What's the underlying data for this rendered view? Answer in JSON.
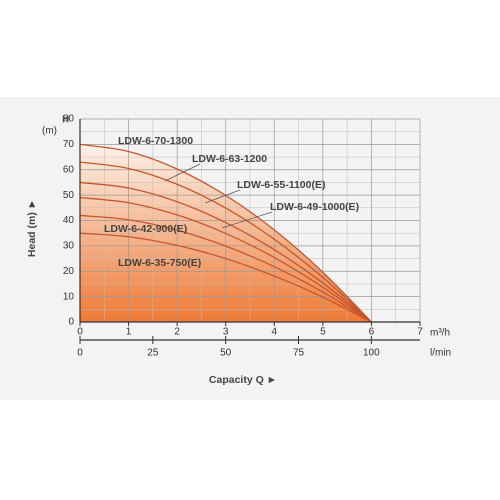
{
  "chart_data": {
    "type": "line",
    "ylabel_top": "H",
    "ylabel_unit": "(m)",
    "ylabel": "Head (m) ►",
    "xlabel": "Capacity Q ►",
    "xunit": "m³/h",
    "x2unit": "l/min",
    "x": [
      0,
      1,
      2,
      3,
      4,
      5,
      6
    ],
    "series": [
      {
        "name": "LDW-6-70-1300",
        "color": "#c8552a",
        "values": [
          70,
          67.2,
          60.3,
          49.9,
          36.3,
          19.6,
          0
        ]
      },
      {
        "name": "LDW-6-63-1200",
        "color": "#c8552a",
        "values": [
          63,
          60.5,
          54.3,
          44.9,
          32.6,
          17.6,
          0
        ]
      },
      {
        "name": "LDW-6-55-1100(E)",
        "color": "#c8552a",
        "values": [
          55,
          52.8,
          47.4,
          39.2,
          28.5,
          15.4,
          0
        ]
      },
      {
        "name": "LDW-6-49-1000(E)",
        "color": "#c8552a",
        "values": [
          49,
          47.0,
          42.2,
          34.9,
          25.4,
          13.7,
          0
        ]
      },
      {
        "name": "LDW-6-42-900(E)",
        "color": "#c8552a",
        "values": [
          42,
          40.3,
          36.2,
          29.9,
          21.8,
          11.8,
          0
        ]
      },
      {
        "name": "LDW-6-35-750(E)",
        "color": "#c8552a",
        "values": [
          35,
          33.6,
          30.2,
          25.0,
          18.1,
          9.8,
          0
        ]
      }
    ],
    "xlim": [
      0,
      7
    ],
    "xticks": [
      0,
      1,
      2,
      3,
      4,
      5,
      6,
      7
    ],
    "ylim": [
      0,
      80
    ],
    "yticks": [
      0,
      10,
      20,
      30,
      40,
      50,
      60,
      70,
      80
    ],
    "x2lim": [
      0,
      116.7
    ],
    "x2ticks": [
      0,
      25,
      50,
      75,
      100
    ],
    "grid": true,
    "minor_grid_divisions": 2,
    "fill_gradient": [
      "#fdf1e8",
      "#ee7a36"
    ]
  }
}
